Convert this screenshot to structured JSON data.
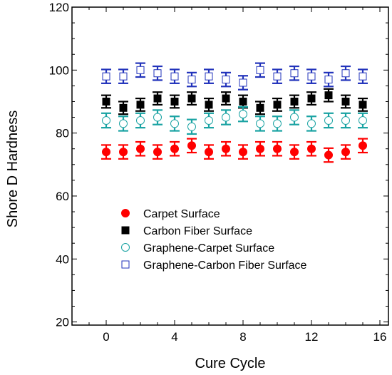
{
  "chart_data": {
    "type": "scatter",
    "xlabel": "Cure Cycle",
    "ylabel": "Shore D Hardness",
    "xlim": [
      -2,
      16.5
    ],
    "ylim": [
      19,
      120
    ],
    "xticks": [
      0,
      4,
      8,
      12,
      16
    ],
    "yticks": [
      20,
      40,
      60,
      80,
      100,
      120
    ],
    "grid": false,
    "legend_position": "lower-left",
    "x": [
      0,
      1,
      2,
      3,
      4,
      5,
      6,
      7,
      8,
      9,
      10,
      11,
      12,
      13,
      14,
      15
    ],
    "series": [
      {
        "name": "Carpet Surface",
        "marker": "filled-circle",
        "color": "#ff0000",
        "values": [
          74,
          74,
          75,
          74,
          75,
          76,
          74,
          75,
          74,
          75,
          75,
          74,
          75,
          73,
          74,
          76
        ],
        "error": [
          2.2,
          2.2,
          2.2,
          2.2,
          2.2,
          2.2,
          2.2,
          2.2,
          2.2,
          2.2,
          2.2,
          2.2,
          2.2,
          2.2,
          2.2,
          2.2
        ]
      },
      {
        "name": "Carbon Fiber Surface",
        "marker": "filled-square",
        "color": "#000000",
        "values": [
          90,
          88,
          89,
          91,
          90,
          91,
          89,
          91,
          90,
          88,
          89,
          90,
          91,
          92,
          90,
          89
        ],
        "error": [
          2.0,
          2.0,
          2.0,
          2.0,
          2.0,
          2.0,
          2.0,
          2.0,
          2.0,
          2.0,
          2.0,
          2.0,
          2.0,
          2.0,
          2.0,
          2.0
        ]
      },
      {
        "name": "Graphene-Carpet Surface",
        "marker": "open-circle",
        "color": "#1aa3a3",
        "values": [
          84,
          83,
          84,
          85,
          83,
          82,
          84,
          85,
          86,
          83,
          83,
          85,
          83,
          84,
          84,
          84
        ],
        "error": [
          2.3,
          2.3,
          2.3,
          2.3,
          2.3,
          2.3,
          2.3,
          2.3,
          2.3,
          2.3,
          2.3,
          2.3,
          2.3,
          2.3,
          2.3,
          2.3
        ]
      },
      {
        "name": "Graphene-Carbon Fiber Surface",
        "marker": "open-square",
        "color": "#2233bb",
        "values": [
          98,
          98,
          100,
          99,
          98,
          97,
          98,
          97,
          96,
          100,
          98,
          99,
          98,
          97,
          99,
          98
        ],
        "error": [
          2.2,
          2.2,
          2.2,
          2.2,
          2.2,
          2.2,
          2.2,
          2.2,
          2.2,
          2.2,
          2.2,
          2.2,
          2.2,
          2.2,
          2.2,
          2.2
        ]
      }
    ]
  }
}
